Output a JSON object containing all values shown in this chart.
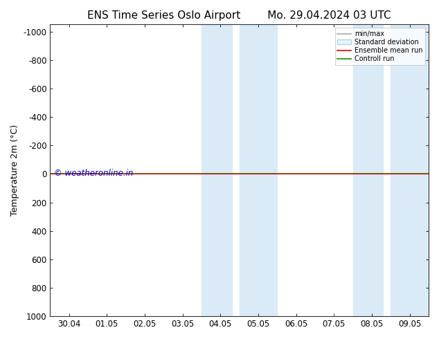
{
  "title_left": "ENS Time Series Oslo Airport",
  "title_right": "Mo. 29.04.2024 03 UTC",
  "ylabel": "Temperature 2m (°C)",
  "ylim_bottom": 1000,
  "ylim_top": -1050,
  "yticks": [
    -1000,
    -800,
    -600,
    -400,
    -200,
    0,
    200,
    400,
    600,
    800,
    1000
  ],
  "xtick_labels": [
    "30.04",
    "01.05",
    "02.05",
    "03.05",
    "04.05",
    "05.05",
    "06.05",
    "07.05",
    "08.05",
    "09.05"
  ],
  "xtick_positions": [
    0,
    1,
    2,
    3,
    4,
    5,
    6,
    7,
    8,
    9
  ],
  "blue_bands": [
    [
      3.5,
      4.3
    ],
    [
      4.5,
      5.5
    ],
    [
      7.5,
      8.3
    ],
    [
      8.5,
      9.5
    ]
  ],
  "blue_band_color": "#daeaf7",
  "green_line_y": 0,
  "red_line_y": 0,
  "watermark": "© weatheronline.in",
  "watermark_color": "#0000cc",
  "legend_labels": [
    "min/max",
    "Standard deviation",
    "Ensemble mean run",
    "Controll run"
  ],
  "legend_line_colors": [
    "#aaaaaa",
    "#cccccc",
    "#dd0000",
    "#228800"
  ],
  "background_color": "#ffffff",
  "plot_bg_color": "#ffffff",
  "title_fontsize": 11,
  "tick_fontsize": 8.5,
  "ylabel_fontsize": 9
}
